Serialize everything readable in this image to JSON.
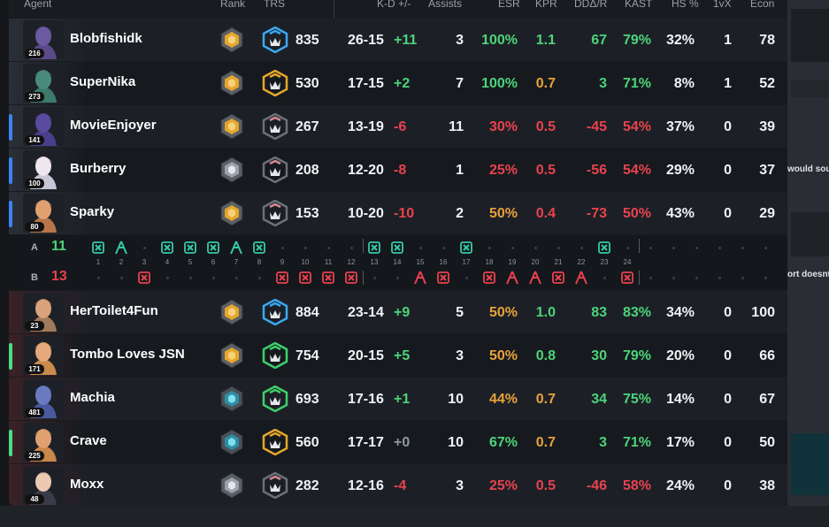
{
  "header": {
    "agent": "Agent",
    "rank": "Rank",
    "trs": "TRS",
    "kd": "K-D +/-",
    "assists": "Assists",
    "esr": "ESR",
    "kpr": "KPR",
    "dd": "DDΔ/R",
    "kast": "KAST",
    "hs": "HS %",
    "onevx": "1vX",
    "econ": "Econ"
  },
  "colors": {
    "green": "#4cd47a",
    "red": "#e8424e",
    "orange": "#e8a23a",
    "white": "#f0f2f5",
    "teamA_accent": "#3b82f6",
    "teamB_accent": "#4ade80"
  },
  "teamA": [
    {
      "name": "Blobfishidk",
      "level": "216",
      "rank_icon": "gold-rank-icon",
      "trs_icon": "blue-trs-icon",
      "trs": "835",
      "kd": "26-15",
      "pm": "+11",
      "assists": "3",
      "esr": "100%",
      "kpr": "1.1",
      "dd": "67",
      "kast": "79%",
      "hs": "32%",
      "onevx": "1",
      "econ": "78"
    },
    {
      "name": "SuperNika",
      "level": "273",
      "rank_icon": "gold-rank-icon",
      "trs_icon": "gold-trs-icon",
      "trs": "530",
      "kd": "17-15",
      "pm": "+2",
      "assists": "7",
      "esr": "100%",
      "kpr": "0.7",
      "dd": "3",
      "kast": "71%",
      "hs": "8%",
      "onevx": "1",
      "econ": "52"
    },
    {
      "name": "MovieEnjoyer",
      "level": "141",
      "rank_icon": "gold-rank-icon",
      "trs_icon": "gray-trs-icon",
      "trs": "267",
      "kd": "13-19",
      "pm": "-6",
      "assists": "11",
      "esr": "30%",
      "kpr": "0.5",
      "dd": "-45",
      "kast": "54%",
      "hs": "37%",
      "onevx": "0",
      "econ": "39"
    },
    {
      "name": "Burberry",
      "level": "100",
      "rank_icon": "silver-rank-icon",
      "trs_icon": "gray-trs-icon",
      "trs": "208",
      "kd": "12-20",
      "pm": "-8",
      "assists": "1",
      "esr": "25%",
      "kpr": "0.5",
      "dd": "-56",
      "kast": "54%",
      "hs": "29%",
      "onevx": "0",
      "econ": "37"
    },
    {
      "name": "Sparky",
      "level": "80",
      "rank_icon": "gold-rank-icon",
      "trs_icon": "gray-trs-icon",
      "trs": "153",
      "kd": "10-20",
      "pm": "-10",
      "assists": "2",
      "esr": "50%",
      "kpr": "0.4",
      "dd": "-73",
      "kast": "50%",
      "hs": "43%",
      "onevx": "0",
      "econ": "29"
    }
  ],
  "teamB": [
    {
      "name": "HerToilet4Fun",
      "level": "23",
      "rank_icon": "gold-rank-icon",
      "trs_icon": "blue-trs-icon",
      "trs": "884",
      "kd": "23-14",
      "pm": "+9",
      "assists": "5",
      "esr": "50%",
      "kpr": "1.0",
      "dd": "83",
      "kast": "83%",
      "hs": "34%",
      "onevx": "0",
      "econ": "100"
    },
    {
      "name": "Tombo Loves JSN",
      "level": "171",
      "rank_icon": "gold-rank-icon",
      "trs_icon": "green-trs-icon",
      "trs": "754",
      "kd": "20-15",
      "pm": "+5",
      "assists": "3",
      "esr": "50%",
      "kpr": "0.8",
      "dd": "30",
      "kast": "79%",
      "hs": "20%",
      "onevx": "0",
      "econ": "66"
    },
    {
      "name": "Machia",
      "level": "481",
      "rank_icon": "platinum-rank-icon",
      "trs_icon": "green-trs-icon",
      "trs": "693",
      "kd": "17-16",
      "pm": "+1",
      "assists": "10",
      "esr": "44%",
      "kpr": "0.7",
      "dd": "34",
      "kast": "75%",
      "hs": "14%",
      "onevx": "0",
      "econ": "67"
    },
    {
      "name": "Crave",
      "level": "225",
      "rank_icon": "platinum-rank-icon",
      "trs_icon": "gold-trs-icon",
      "trs": "560",
      "kd": "17-17",
      "pm": "+0",
      "assists": "10",
      "esr": "67%",
      "kpr": "0.7",
      "dd": "3",
      "kast": "71%",
      "hs": "17%",
      "onevx": "0",
      "econ": "50"
    },
    {
      "name": "Moxx",
      "level": "48",
      "rank_icon": "silver-rank-icon",
      "trs_icon": "gray-trs-icon",
      "trs": "282",
      "kd": "12-16",
      "pm": "-4",
      "assists": "3",
      "esr": "25%",
      "kpr": "0.5",
      "dd": "-46",
      "kast": "58%",
      "hs": "24%",
      "onevx": "0",
      "econ": "38"
    }
  ],
  "timeline": {
    "teamA_label": "A",
    "teamA_score": "11",
    "teamB_label": "B",
    "teamB_score": "13",
    "round_numbers": [
      "1",
      "2",
      "3",
      "4",
      "5",
      "6",
      "7",
      "8",
      "9",
      "10",
      "11",
      "12",
      "13",
      "14",
      "15",
      "16",
      "17",
      "18",
      "19",
      "20",
      "21",
      "22",
      "23",
      "24"
    ],
    "round_winners": [
      "A",
      "A",
      "B",
      "A",
      "A",
      "A",
      "A",
      "A",
      "B",
      "B",
      "B",
      "B",
      "A",
      "A",
      "B",
      "B",
      "A",
      "B",
      "B",
      "B",
      "B",
      "B",
      "A",
      "B"
    ],
    "round_icons": [
      "elim",
      "defuse",
      "elim",
      "elim",
      "elim",
      "elim",
      "defuse",
      "elim",
      "elim",
      "elim",
      "elim",
      "elim",
      "elim",
      "elim",
      "defuse",
      "elim",
      "elim",
      "elim",
      "defuse",
      "defuse",
      "elim",
      "defuse",
      "elim",
      "elim"
    ]
  },
  "side_panel": {
    "text1": "would sou",
    "text2": "ort doesnt"
  }
}
